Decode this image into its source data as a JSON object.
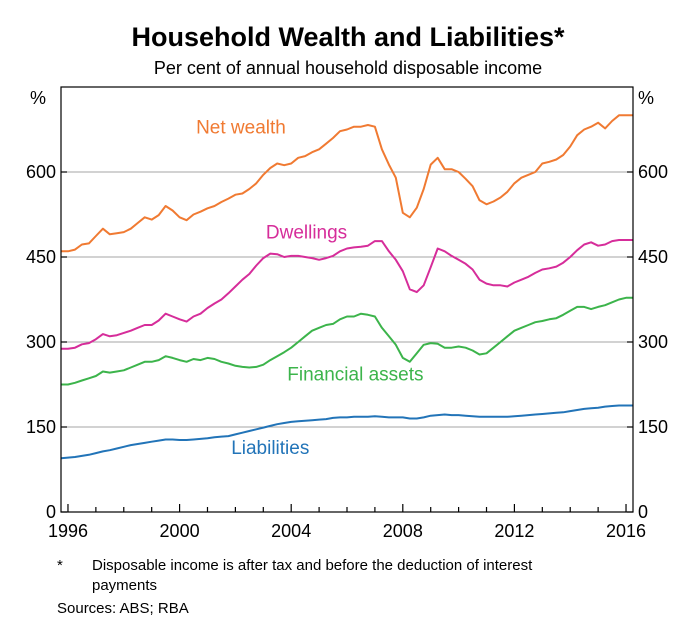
{
  "chart_data": {
    "type": "line",
    "title": "Household Wealth and Liabilities*",
    "subtitle": "Per cent of annual household disposable income",
    "ylabel_left": "%",
    "ylabel_right": "%",
    "ylim": [
      0,
      750
    ],
    "yticks": [
      0,
      150,
      300,
      450,
      600
    ],
    "xlim": [
      1995.75,
      2016.25
    ],
    "xticks": [
      1996,
      2000,
      2004,
      2008,
      2012,
      2016
    ],
    "grid": "horizontal",
    "legend": "inline labels",
    "colors": {
      "net_wealth": "#f07a32",
      "dwellings": "#d62d9a",
      "financial_assets": "#3cb44b",
      "liabilities": "#2274b8",
      "grid": "#a6a6a6"
    },
    "x": [
      1995.75,
      1996.0,
      1996.25,
      1996.5,
      1996.75,
      1997.0,
      1997.25,
      1997.5,
      1997.75,
      1998.0,
      1998.25,
      1998.5,
      1998.75,
      1999.0,
      1999.25,
      1999.5,
      1999.75,
      2000.0,
      2000.25,
      2000.5,
      2000.75,
      2001.0,
      2001.25,
      2001.5,
      2001.75,
      2002.0,
      2002.25,
      2002.5,
      2002.75,
      2003.0,
      2003.25,
      2003.5,
      2003.75,
      2004.0,
      2004.25,
      2004.5,
      2004.75,
      2005.0,
      2005.25,
      2005.5,
      2005.75,
      2006.0,
      2006.25,
      2006.5,
      2006.75,
      2007.0,
      2007.25,
      2007.5,
      2007.75,
      2008.0,
      2008.25,
      2008.5,
      2008.75,
      2009.0,
      2009.25,
      2009.5,
      2009.75,
      2010.0,
      2010.25,
      2010.5,
      2010.75,
      2011.0,
      2011.25,
      2011.5,
      2011.75,
      2012.0,
      2012.25,
      2012.5,
      2012.75,
      2013.0,
      2013.25,
      2013.5,
      2013.75,
      2014.0,
      2014.25,
      2014.5,
      2014.75,
      2015.0,
      2015.25,
      2015.5,
      2015.75,
      2016.0,
      2016.25
    ],
    "series": [
      {
        "name": "Net wealth",
        "color_key": "net_wealth",
        "values": [
          460,
          460,
          463,
          472,
          474,
          487,
          500,
          490,
          492,
          494,
          500,
          510,
          520,
          516,
          524,
          540,
          532,
          520,
          515,
          525,
          530,
          536,
          540,
          547,
          553,
          560,
          562,
          570,
          580,
          595,
          607,
          615,
          612,
          615,
          625,
          628,
          635,
          640,
          650,
          660,
          672,
          675,
          680,
          680,
          683,
          680,
          640,
          613,
          590,
          528,
          520,
          537,
          570,
          613,
          625,
          605,
          605,
          600,
          588,
          575,
          550,
          543,
          548,
          555,
          565,
          580,
          590,
          595,
          600,
          615,
          618,
          622,
          630,
          645,
          665,
          675,
          680,
          687,
          677,
          690,
          700,
          700,
          700
        ]
      },
      {
        "name": "Dwellings",
        "color_key": "dwellings",
        "values": [
          288,
          288,
          290,
          296,
          298,
          305,
          314,
          310,
          312,
          316,
          320,
          325,
          330,
          330,
          338,
          350,
          345,
          340,
          336,
          345,
          350,
          360,
          368,
          375,
          386,
          398,
          410,
          420,
          435,
          448,
          456,
          455,
          450,
          452,
          452,
          450,
          448,
          445,
          448,
          452,
          460,
          465,
          467,
          468,
          470,
          478,
          478,
          460,
          445,
          425,
          393,
          388,
          400,
          432,
          465,
          460,
          452,
          445,
          438,
          428,
          410,
          403,
          400,
          400,
          398,
          405,
          410,
          415,
          422,
          428,
          430,
          433,
          440,
          450,
          462,
          472,
          476,
          470,
          472,
          478,
          480,
          480,
          480
        ]
      },
      {
        "name": "Financial assets",
        "color_key": "financial_assets",
        "values": [
          225,
          225,
          228,
          232,
          236,
          240,
          248,
          246,
          248,
          250,
          255,
          260,
          265,
          265,
          268,
          275,
          272,
          268,
          265,
          270,
          268,
          272,
          270,
          265,
          262,
          258,
          256,
          255,
          256,
          260,
          268,
          275,
          282,
          290,
          300,
          310,
          320,
          325,
          330,
          332,
          340,
          345,
          345,
          350,
          348,
          345,
          325,
          310,
          295,
          272,
          265,
          280,
          295,
          298,
          297,
          290,
          290,
          292,
          290,
          285,
          278,
          280,
          290,
          300,
          310,
          320,
          325,
          330,
          335,
          337,
          340,
          342,
          348,
          355,
          362,
          362,
          358,
          362,
          365,
          370,
          375,
          378,
          378
        ]
      },
      {
        "name": "Liabilities",
        "color_key": "liabilities",
        "values": [
          95,
          96,
          97,
          99,
          101,
          104,
          107,
          109,
          112,
          115,
          118,
          120,
          122,
          124,
          126,
          128,
          128,
          127,
          127,
          128,
          129,
          130,
          132,
          133,
          134,
          137,
          140,
          143,
          146,
          149,
          152,
          155,
          157,
          159,
          160,
          161,
          162,
          163,
          164,
          166,
          167,
          167,
          168,
          168,
          168,
          169,
          168,
          167,
          167,
          167,
          165,
          165,
          167,
          170,
          171,
          172,
          171,
          171,
          170,
          169,
          168,
          168,
          168,
          168,
          168,
          169,
          170,
          171,
          172,
          173,
          174,
          175,
          176,
          178,
          180,
          182,
          183,
          184,
          186,
          187,
          188,
          188,
          188
        ]
      }
    ],
    "labels": [
      {
        "text": "Net wealth",
        "color_key": "net_wealth",
        "x": 2002.2,
        "y": 668
      },
      {
        "text": "Dwellings",
        "color_key": "dwellings",
        "x": 2004.55,
        "y": 483
      },
      {
        "text": "Financial assets",
        "color_key": "financial_assets",
        "x": 2006.3,
        "y": 232
      },
      {
        "text": "Liabilities",
        "color_key": "liabilities",
        "x": 2003.25,
        "y": 102
      }
    ]
  },
  "footnote": {
    "marker": "*",
    "line1": "Disposable income is after tax and before the deduction of interest",
    "line2": "payments"
  },
  "sources": "Sources: ABS; RBA"
}
